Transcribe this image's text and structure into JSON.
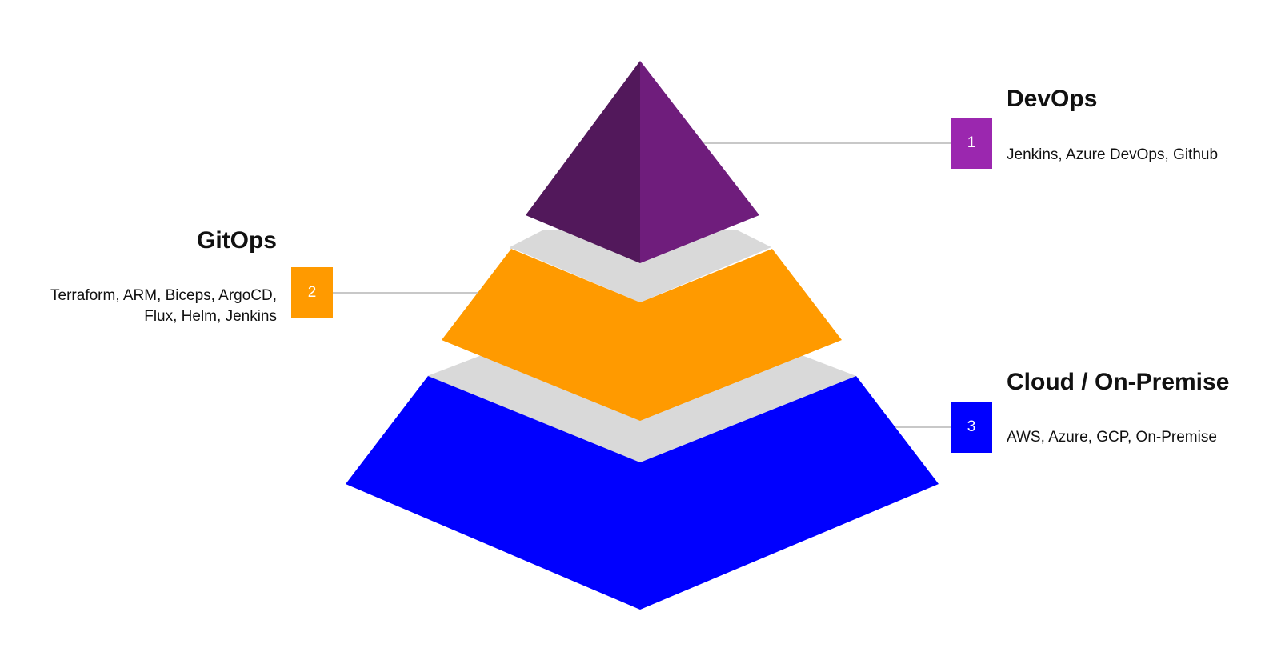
{
  "colors": {
    "devops": "#6f1d7c",
    "devops_shade": "#52185b",
    "gitops": "#ff9a00",
    "cloud": "#0000ff",
    "gap": "#d9d9d9",
    "connector": "#c8c8c8",
    "badge_devops": "#9b27af",
    "badge_gitops": "#ff9a00",
    "badge_cloud": "#0000ff"
  },
  "layers": [
    {
      "number": "1",
      "title": "DevOps",
      "description": "Jenkins, Azure DevOps, Github",
      "icon": "pyramid-top"
    },
    {
      "number": "2",
      "title": "GitOps",
      "description_lines": [
        "Terraform, ARM, Biceps, ArgoCD,",
        "Flux, Helm, Jenkins"
      ],
      "icon": "pyramid-middle"
    },
    {
      "number": "3",
      "title": "Cloud / On-Premise",
      "description": "AWS, Azure, GCP, On-Premise",
      "icon": "pyramid-base"
    }
  ]
}
